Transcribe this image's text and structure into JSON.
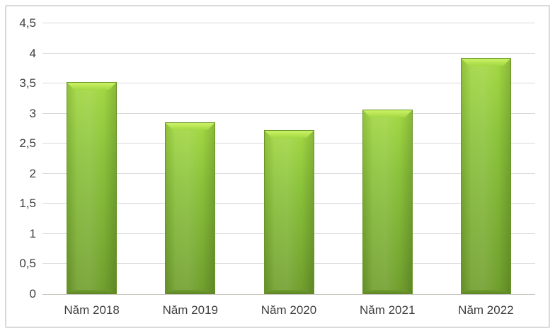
{
  "figure": {
    "background": "#ffffff",
    "border_color": "#d9d9d9"
  },
  "chart_data": {
    "type": "bar",
    "title": "",
    "xlabel": "",
    "ylabel": "",
    "categories": [
      "Năm 2018",
      "Năm 2019",
      "Năm 2020",
      "Năm 2021",
      "Năm 2022"
    ],
    "values": [
      3.53,
      2.85,
      2.73,
      3.07,
      3.93
    ],
    "ylim": [
      0,
      4.5
    ],
    "y_tick_step": 0.5,
    "y_tick_labels": [
      "0",
      "0,5",
      "1",
      "1,5",
      "2",
      "2,5",
      "3",
      "3,5",
      "4",
      "4,5"
    ],
    "decimal_separator": ",",
    "grid": true,
    "legend_position": "none",
    "gridline_color": "#d9d9d9",
    "axis_line_color": "#c8c6c0",
    "text_color": "#3f3f3f",
    "bar_style": {
      "fill_top": "#a3d843",
      "fill_mid": "#8ac23a",
      "fill_bottom": "#6f9e2d",
      "bevel_highlight": "#ccf266",
      "bevel_shadow": "#5d8425",
      "border": "#679428"
    }
  }
}
